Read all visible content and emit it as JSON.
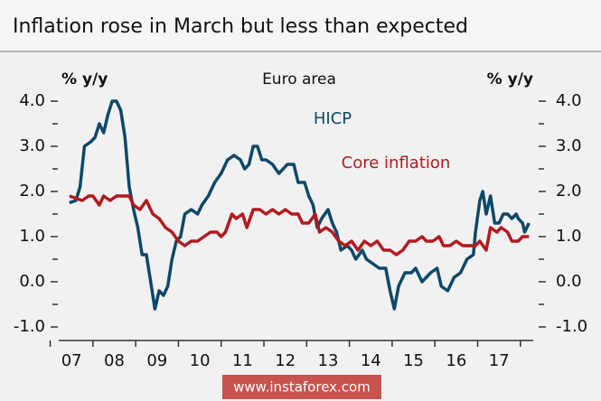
{
  "chart_data": {
    "type": "line",
    "title": "Inflation rose in March but less than expected",
    "subtitle": "Euro area",
    "ylabel": "% y/y",
    "y2label": "% y/y",
    "watermark": "www.instaforex.com",
    "xlim": [
      2007.2,
      2018.3
    ],
    "xticks": [
      {
        "value": 2007.5,
        "label": "07"
      },
      {
        "value": 2008.5,
        "label": "08"
      },
      {
        "value": 2009.5,
        "label": "09"
      },
      {
        "value": 2010.5,
        "label": "10"
      },
      {
        "value": 2011.5,
        "label": "11"
      },
      {
        "value": 2012.5,
        "label": "12"
      },
      {
        "value": 2013.5,
        "label": "13"
      },
      {
        "value": 2014.5,
        "label": "14"
      },
      {
        "value": 2015.5,
        "label": "15"
      },
      {
        "value": 2016.5,
        "label": "16"
      },
      {
        "value": 2017.5,
        "label": "17"
      }
    ],
    "ylim": [
      -1.3,
      4.5
    ],
    "yticks": [
      {
        "value": -1,
        "label": "-1.0"
      },
      {
        "value": 0,
        "label": "0.0"
      },
      {
        "value": 1,
        "label": "1.0"
      },
      {
        "value": 2,
        "label": "2.0"
      },
      {
        "value": 3,
        "label": "3.0"
      },
      {
        "value": 4,
        "label": "4.0"
      }
    ],
    "y2lim": [
      -1.3,
      4.5
    ],
    "y2ticks": [
      {
        "value": -1,
        "label": "-1.0"
      },
      {
        "value": 0,
        "label": "0.0"
      },
      {
        "value": 1,
        "label": "1.0"
      },
      {
        "value": 2,
        "label": "2.0"
      },
      {
        "value": 3,
        "label": "3.0"
      },
      {
        "value": 4,
        "label": "4.0"
      }
    ],
    "series": [
      {
        "name": "HICP",
        "color": "#0e4868",
        "x": [
          2007.45,
          2007.6,
          2007.7,
          2007.8,
          2007.95,
          2008.05,
          2008.15,
          2008.25,
          2008.35,
          2008.45,
          2008.55,
          2008.65,
          2008.75,
          2008.85,
          2008.95,
          2009.05,
          2009.15,
          2009.25,
          2009.35,
          2009.45,
          2009.55,
          2009.65,
          2009.75,
          2009.85,
          2009.95,
          2010.05,
          2010.15,
          2010.3,
          2010.45,
          2010.55,
          2010.7,
          2010.85,
          2011.0,
          2011.15,
          2011.3,
          2011.45,
          2011.55,
          2011.65,
          2011.75,
          2011.85,
          2011.95,
          2012.05,
          2012.2,
          2012.35,
          2012.45,
          2012.55,
          2012.7,
          2012.8,
          2012.95,
          2013.05,
          2013.15,
          2013.25,
          2013.35,
          2013.5,
          2013.6,
          2013.7,
          2013.8,
          2013.95,
          2014.05,
          2014.15,
          2014.3,
          2014.4,
          2014.55,
          2014.7,
          2014.85,
          2014.95,
          2015.05,
          2015.15,
          2015.3,
          2015.45,
          2015.55,
          2015.7,
          2015.8,
          2015.9,
          2016.05,
          2016.15,
          2016.3,
          2016.45,
          2016.6,
          2016.75,
          2016.9,
          2016.95,
          2017.05,
          2017.12,
          2017.2,
          2017.3,
          2017.4,
          2017.5,
          2017.6,
          2017.7,
          2017.8,
          2017.9,
          2017.95,
          2018.05,
          2018.1,
          2018.2
        ],
        "values": [
          1.75,
          1.8,
          2.1,
          3.0,
          3.1,
          3.2,
          3.5,
          3.3,
          3.7,
          4.0,
          4.0,
          3.8,
          3.2,
          2.1,
          1.6,
          1.2,
          0.6,
          0.6,
          0.0,
          -0.6,
          -0.2,
          -0.3,
          -0.1,
          0.5,
          0.9,
          1.0,
          1.5,
          1.6,
          1.5,
          1.7,
          1.9,
          2.2,
          2.4,
          2.7,
          2.8,
          2.7,
          2.5,
          2.6,
          3.0,
          3.0,
          2.7,
          2.7,
          2.6,
          2.4,
          2.5,
          2.6,
          2.6,
          2.2,
          2.2,
          1.9,
          1.7,
          1.2,
          1.4,
          1.6,
          1.3,
          1.1,
          0.7,
          0.8,
          0.7,
          0.5,
          0.7,
          0.5,
          0.4,
          0.3,
          0.3,
          -0.2,
          -0.6,
          -0.1,
          0.2,
          0.2,
          0.3,
          0.0,
          0.1,
          0.2,
          0.3,
          -0.1,
          -0.2,
          0.1,
          0.2,
          0.5,
          0.6,
          1.1,
          1.8,
          2.0,
          1.5,
          1.9,
          1.3,
          1.3,
          1.5,
          1.5,
          1.4,
          1.5,
          1.4,
          1.3,
          1.1,
          1.3
        ]
      },
      {
        "name": "Core inflation",
        "color": "#b3191f",
        "x": [
          2007.45,
          2007.6,
          2007.75,
          2007.9,
          2008.0,
          2008.15,
          2008.25,
          2008.4,
          2008.55,
          2008.7,
          2008.85,
          2008.95,
          2009.1,
          2009.25,
          2009.4,
          2009.55,
          2009.7,
          2009.85,
          2010.0,
          2010.15,
          2010.3,
          2010.45,
          2010.6,
          2010.75,
          2010.9,
          2011.0,
          2011.1,
          2011.25,
          2011.35,
          2011.5,
          2011.6,
          2011.75,
          2011.9,
          2012.05,
          2012.2,
          2012.35,
          2012.5,
          2012.65,
          2012.8,
          2012.9,
          2013.05,
          2013.2,
          2013.3,
          2013.45,
          2013.6,
          2013.75,
          2013.9,
          2014.05,
          2014.2,
          2014.35,
          2014.5,
          2014.65,
          2014.8,
          2014.95,
          2015.1,
          2015.25,
          2015.4,
          2015.55,
          2015.7,
          2015.8,
          2015.95,
          2016.1,
          2016.2,
          2016.35,
          2016.5,
          2016.65,
          2016.8,
          2016.95,
          2017.05,
          2017.2,
          2017.3,
          2017.45,
          2017.55,
          2017.7,
          2017.8,
          2017.95,
          2018.05,
          2018.2
        ],
        "values": [
          1.9,
          1.85,
          1.8,
          1.9,
          1.9,
          1.7,
          1.9,
          1.8,
          1.9,
          1.9,
          1.9,
          1.7,
          1.6,
          1.8,
          1.5,
          1.4,
          1.2,
          1.1,
          0.9,
          0.8,
          0.9,
          0.9,
          1.0,
          1.1,
          1.1,
          1.0,
          1.1,
          1.5,
          1.4,
          1.5,
          1.2,
          1.6,
          1.6,
          1.5,
          1.6,
          1.5,
          1.6,
          1.5,
          1.5,
          1.3,
          1.3,
          1.5,
          1.1,
          1.2,
          1.1,
          0.9,
          0.8,
          0.9,
          0.7,
          0.9,
          0.8,
          0.9,
          0.7,
          0.7,
          0.6,
          0.7,
          0.9,
          0.9,
          1.0,
          0.9,
          0.9,
          1.0,
          0.8,
          0.8,
          0.9,
          0.8,
          0.8,
          0.8,
          0.9,
          0.7,
          1.2,
          1.1,
          1.2,
          1.1,
          0.9,
          0.9,
          1.0,
          1.0
        ]
      }
    ]
  }
}
